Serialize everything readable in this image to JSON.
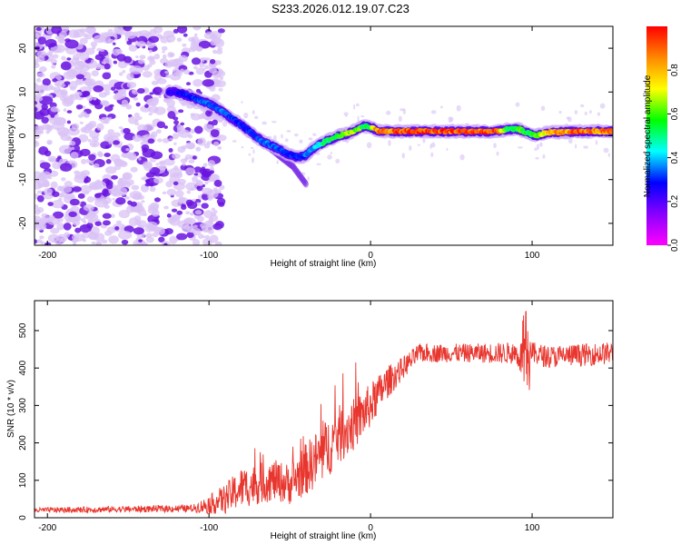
{
  "title": "S233.2026.012.19.07.C23",
  "colors": {
    "snr_line": "#e8362e",
    "blob_light": "#d9c2f5",
    "blob_dark": "#6a14e0",
    "frame": "#000000"
  },
  "chart_data": [
    {
      "type": "heatmap",
      "name": "spectrogram",
      "xlabel": "Height of straight line (km)",
      "ylabel": "Frequency (Hz)",
      "xlim": [
        -208,
        150
      ],
      "ylim": [
        -25,
        25
      ],
      "xticks": [
        -200,
        -100,
        0,
        100
      ],
      "xtick_labels": [
        "-200",
        "-100",
        "0",
        "100"
      ],
      "yticks": [
        20,
        10,
        0,
        -10,
        -20
      ],
      "ytick_labels": [
        "20",
        "10",
        "0",
        "-10",
        "-20"
      ],
      "colorbar": {
        "label": "Normalized spectral amplitude",
        "range": [
          0,
          1
        ],
        "ticks": [
          0.0,
          0.2,
          0.4,
          0.6,
          0.8
        ],
        "tick_labels": [
          "0.0",
          "0.2",
          "0.4",
          "0.6",
          "0.8"
        ],
        "stops": [
          "#ff00ff",
          "#8800ff",
          "#0000ff",
          "#00ffff",
          "#00ff00",
          "#ffff00",
          "#ff8800",
          "#ff0000"
        ]
      },
      "ridge": {
        "x": [
          -120,
          -112,
          -105,
          -98,
          -90,
          -82,
          -75,
          -68,
          -60,
          -52,
          -45,
          -40,
          -36,
          -32,
          -26,
          -20,
          -14,
          -8,
          -4,
          0,
          4,
          10,
          30,
          60,
          78,
          85,
          92,
          98,
          102,
          110,
          130,
          150
        ],
        "y": [
          10,
          9,
          8,
          7,
          5,
          3,
          1,
          -1,
          -2.5,
          -4,
          -5,
          -4.5,
          -3,
          -2,
          -1,
          0,
          0.5,
          1.5,
          2.2,
          2,
          1.2,
          1,
          1,
          1,
          1,
          1.5,
          1.5,
          0.5,
          0,
          0.8,
          1,
          1
        ],
        "amplitude": [
          0.25,
          0.3,
          0.35,
          0.35,
          0.35,
          0.3,
          0.3,
          0.35,
          0.35,
          0.3,
          0.3,
          0.35,
          0.4,
          0.45,
          0.55,
          0.6,
          0.7,
          0.65,
          0.55,
          0.6,
          0.85,
          0.9,
          0.95,
          0.95,
          0.9,
          0.5,
          0.6,
          0.55,
          0.6,
          0.8,
          0.9,
          0.85
        ]
      },
      "branch": {
        "x": [
          -75,
          -65,
          -55,
          -48,
          -44,
          -40
        ],
        "y": [
          1,
          -2,
          -5,
          -7,
          -9,
          -11
        ]
      },
      "noise_region_x": [
        -208,
        -100
      ]
    },
    {
      "type": "line",
      "name": "snr",
      "xlabel": "Height of straight line (km)",
      "ylabel": "SNR (10 * v/v)",
      "xlim": [
        -208,
        150
      ],
      "ylim": [
        0,
        580
      ],
      "xticks": [
        -200,
        -100,
        0,
        100
      ],
      "xtick_labels": [
        "-200",
        "-100",
        "0",
        "100"
      ],
      "yticks": [
        0,
        100,
        200,
        300,
        400,
        500
      ],
      "ytick_labels": [
        "0",
        "100",
        "200",
        "300",
        "400",
        "500"
      ],
      "envelope": {
        "x": [
          -208,
          -110,
          -100,
          -90,
          -80,
          -70,
          -60,
          -50,
          -40,
          -30,
          -20,
          -10,
          0,
          10,
          20,
          30,
          60,
          90,
          95,
          100,
          110,
          150
        ],
        "y": [
          20,
          25,
          35,
          50,
          80,
          90,
          100,
          90,
          130,
          170,
          220,
          250,
          300,
          360,
          400,
          440,
          440,
          440,
          420,
          440,
          430,
          440
        ],
        "noise": [
          7,
          10,
          25,
          40,
          55,
          55,
          55,
          55,
          70,
          80,
          80,
          70,
          60,
          45,
          30,
          25,
          25,
          30,
          60,
          30,
          30,
          30
        ]
      }
    }
  ]
}
